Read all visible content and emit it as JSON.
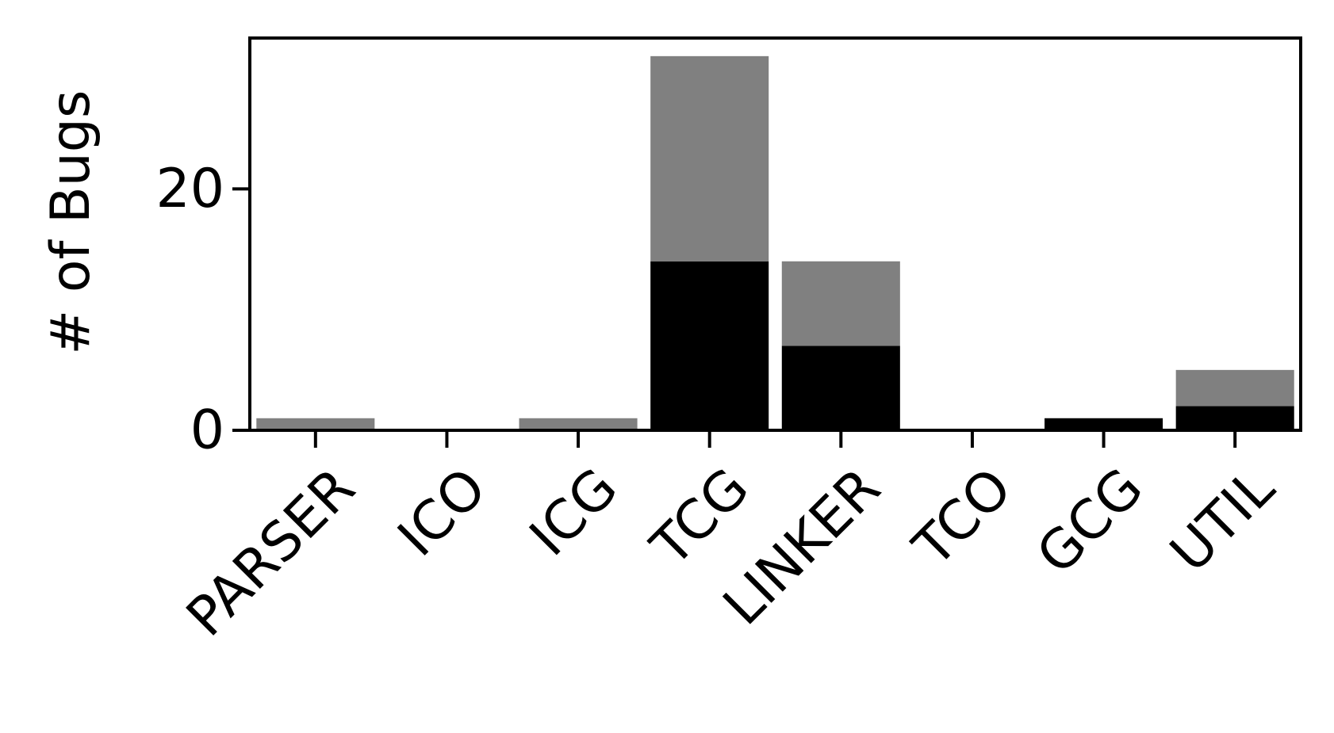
{
  "chart_data": {
    "type": "bar",
    "stacked": true,
    "categories": [
      "PARSER",
      "ICO",
      "ICG",
      "TCG",
      "LINKER",
      "TCO",
      "GCG",
      "UTIL"
    ],
    "series": [
      {
        "values": [
          0,
          0,
          0,
          14,
          7,
          0,
          1,
          2
        ],
        "color": "#000000"
      },
      {
        "values": [
          1,
          0,
          1,
          17,
          7,
          0,
          0,
          3
        ],
        "color": "#808080"
      }
    ],
    "xlabel": "",
    "ylabel": "# of Bugs",
    "ylim": [
      0,
      32.5
    ],
    "yticks": [
      0,
      20
    ],
    "grid": false,
    "legend": "none"
  }
}
